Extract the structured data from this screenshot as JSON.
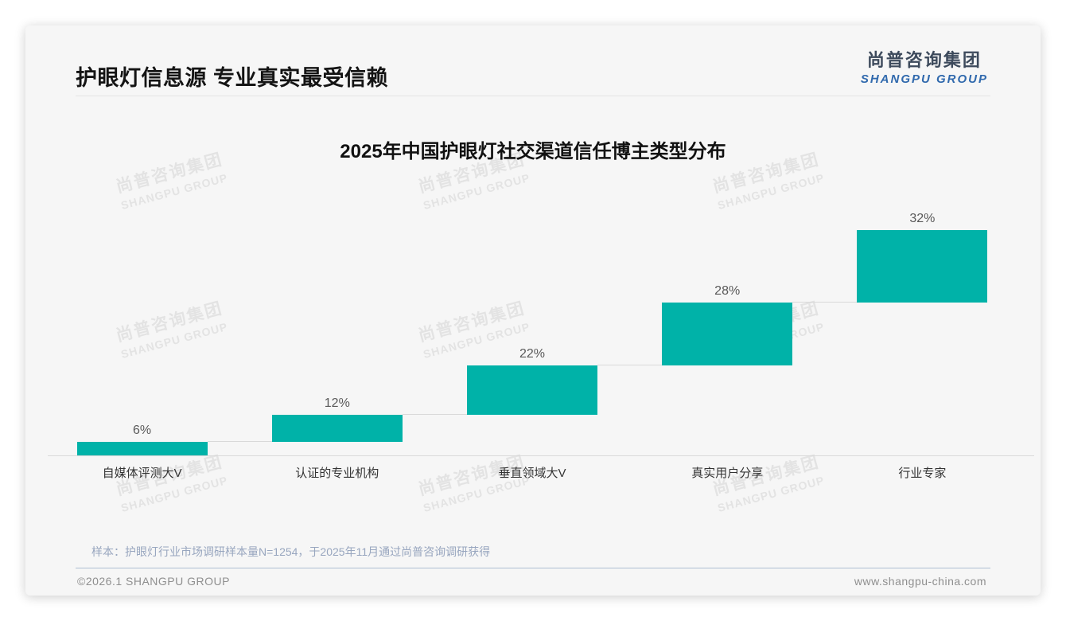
{
  "header": {
    "title": "护眼灯信息源 专业真实最受信赖",
    "logo": {
      "zh": "尚普咨询集团",
      "en": "SHANGPU GROUP"
    }
  },
  "watermark": {
    "zh": "尚普咨询集团",
    "en": "SHANGPU GROUP"
  },
  "chart_data": {
    "type": "bar",
    "subtype": "waterfall-staircase",
    "title": "2025年中国护眼灯社交渠道信任博主类型分布",
    "categories": [
      "自媒体评测大V",
      "认证的专业机构",
      "垂直领域大V",
      "真实用户分享",
      "行业专家"
    ],
    "values": [
      6,
      12,
      22,
      28,
      32
    ],
    "labels": [
      "6%",
      "12%",
      "22%",
      "28%",
      "32%"
    ],
    "unit": "%",
    "cumulative": true,
    "ylim": [
      0,
      100
    ],
    "grid": false,
    "legend": false,
    "bar_color": "#00b2a8",
    "connector_color": "#d9d9d9",
    "baseline_color": "#d9d9d9",
    "value_label_color": "#595959",
    "category_label_color": "#333333"
  },
  "footnote": "样本：护眼灯行业市场调研样本量N=1254，于2025年11月通过尚普咨询调研获得",
  "footer": {
    "copyright": "©2026.1 SHANGPU GROUP",
    "website": "www.shangpu-china.com"
  }
}
